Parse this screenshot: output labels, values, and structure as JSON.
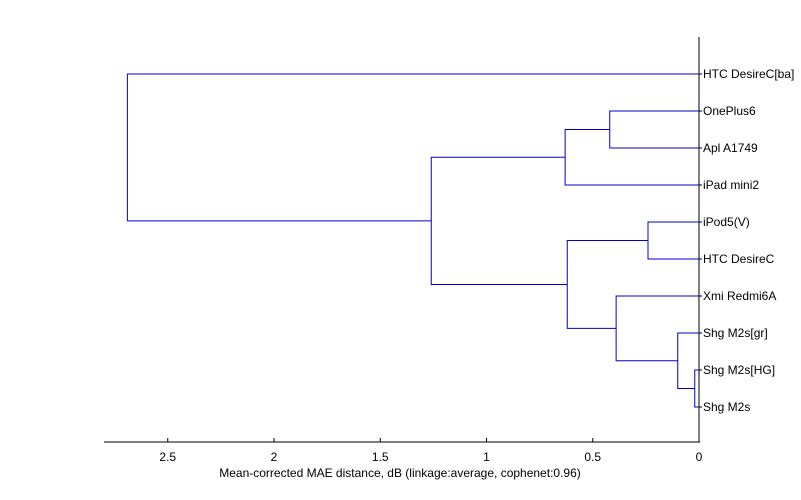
{
  "chart_data": {
    "type": "dendrogram",
    "orientation": "horizontal",
    "xlabel": "Mean-corrected MAE distance, dB (linkage:average, cophenet:0.96)",
    "xlim": [
      2.8,
      0
    ],
    "x_ticks": [
      2.5,
      2,
      1.5,
      1,
      0.5,
      0
    ],
    "x_tick_labels": [
      "2.5",
      "2",
      "1.5",
      "1",
      "0.5",
      "0"
    ],
    "leaves": [
      "HTC DesireC[ba]",
      "OnePlus6",
      "Apl A1749",
      "iPad mini2",
      "iPod5(V)",
      "HTC DesireC",
      "Xmi Redmi6A",
      "Shg M2s[gr]",
      "Shg M2s[HG]",
      "Shg M2s"
    ],
    "links": [
      {
        "left": "Shg M2s[HG]",
        "right": "Shg M2s",
        "distance": 0.02
      },
      {
        "left": "Shg M2s[gr]",
        "right": "Shg M2s[HG]+Shg M2s",
        "distance": 0.1
      },
      {
        "left": "iPod5(V)",
        "right": "HTC DesireC",
        "distance": 0.24
      },
      {
        "left": "Xmi Redmi6A",
        "right": "Shg M2s group",
        "distance": 0.39
      },
      {
        "left": "OnePlus6",
        "right": "Apl A1749",
        "distance": 0.42
      },
      {
        "left": "iPod5(V)+HTC DesireC",
        "right": "Xmi Redmi6A group",
        "distance": 0.62
      },
      {
        "left": "OnePlus6+Apl A1749",
        "right": "iPad mini2",
        "distance": 0.63
      },
      {
        "left": "top cluster",
        "right": "bottom cluster",
        "distance": 1.26
      },
      {
        "left": "HTC DesireC[ba]",
        "right": "all others",
        "distance": 2.69
      }
    ],
    "line_color": "#0000cc",
    "grid": false,
    "legend": "none"
  }
}
